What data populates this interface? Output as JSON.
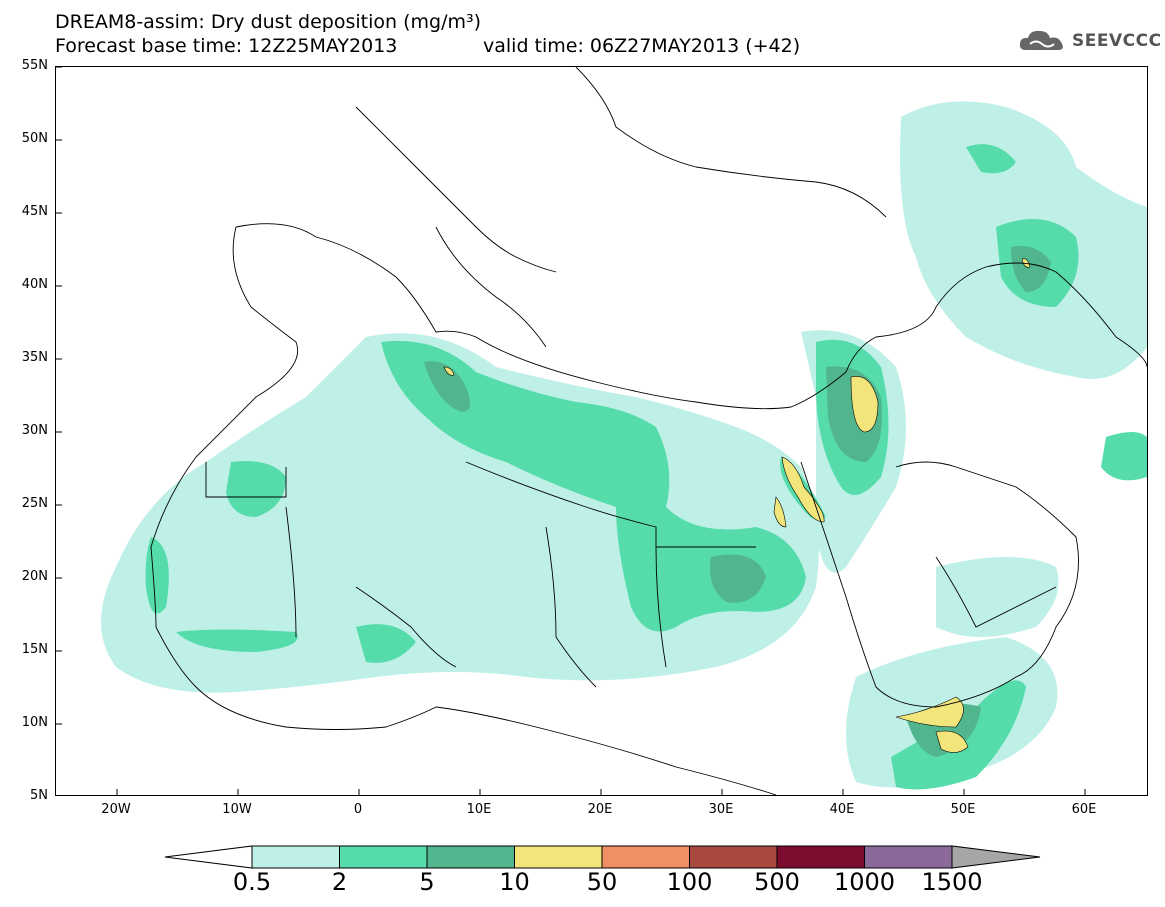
{
  "header": {
    "title_line1": "DREAM8-assim: Dry dust deposition (mg/m³)",
    "title_line2_left": "Forecast base time: 12Z25MAY2013",
    "title_line2_right": "valid time: 06Z27MAY2013 (+42)",
    "logo_text": "SEEVCCC"
  },
  "map": {
    "lat_labels": [
      "55N",
      "50N",
      "45N",
      "40N",
      "35N",
      "30N",
      "25N",
      "20N",
      "15N",
      "10N",
      "5N"
    ],
    "lon_labels": [
      "20W",
      "10W",
      "0",
      "10E",
      "20E",
      "30E",
      "40E",
      "50E",
      "60E"
    ],
    "extent": {
      "lon_min": -25,
      "lon_max": 65,
      "lat_min": 5,
      "lat_max": 55
    }
  },
  "colorbar": {
    "labels": [
      "0.5",
      "2",
      "5",
      "10",
      "50",
      "100",
      "500",
      "1000",
      "1500"
    ],
    "colors": [
      "#bff0e8",
      "#56dcab",
      "#51b58e",
      "#f2e57c",
      "#ef8f64",
      "#a9493e",
      "#7d0d2e",
      "#8b6a9b"
    ],
    "extend_low": "#ffffff",
    "extend_high": "#a6a6a6"
  }
}
